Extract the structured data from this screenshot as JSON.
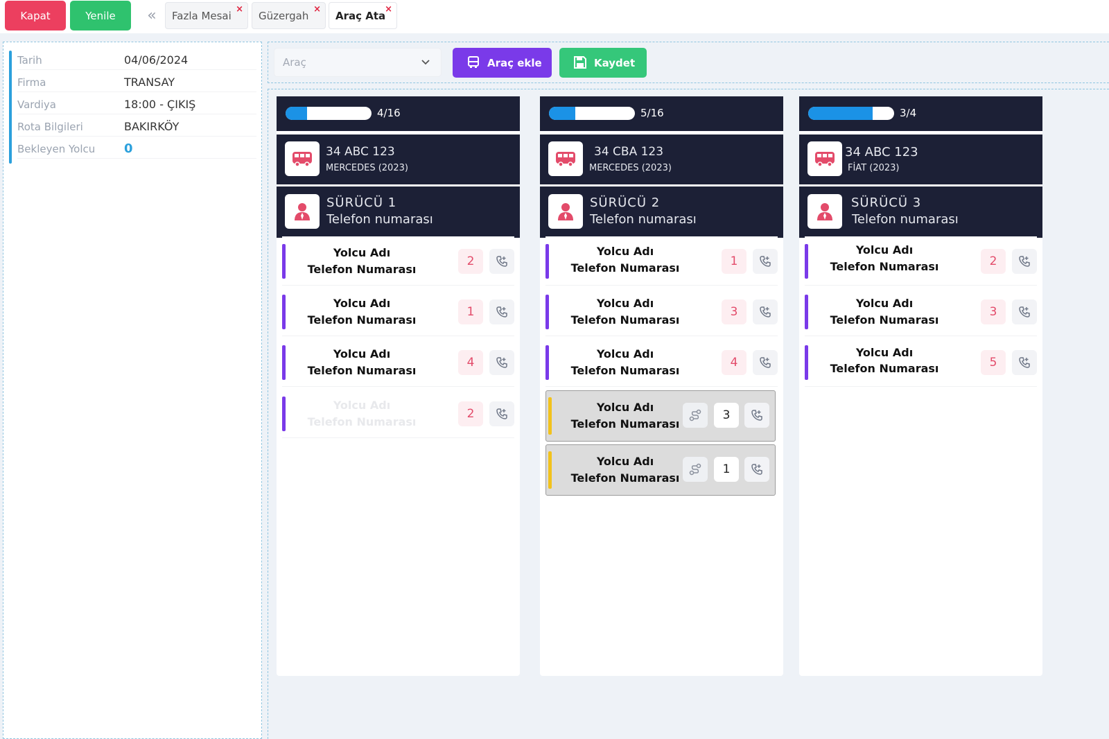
{
  "top": {
    "close_label": "Kapat",
    "refresh_label": "Yenile",
    "collapse_glyph": "«",
    "tabs": [
      {
        "label": "Fazla Mesai"
      },
      {
        "label": "Güzergah"
      },
      {
        "label": "Araç Ata"
      }
    ],
    "tab_close_glyph": "×"
  },
  "info": {
    "rows": [
      {
        "label": "Tarih",
        "value": "04/06/2024"
      },
      {
        "label": "Firma",
        "value": "TRANSAY"
      },
      {
        "label": "Vardiya",
        "value": "18:00 - ÇIKIŞ"
      },
      {
        "label": "Rota Bilgileri",
        "value": "BAKIRKÖY"
      },
      {
        "label": "Bekleyen Yolcu",
        "value": "0"
      }
    ]
  },
  "toolbar": {
    "vehicle_select_placeholder": "Araç",
    "add_vehicle_label": "Araç ekle",
    "save_label": "Kaydet"
  },
  "colors": {
    "accent_purple": "#7a3ae9",
    "danger": "#ec3f5f",
    "success": "#2fc26e",
    "info_blue": "#2ba0dc",
    "header_dark": "#1c2036",
    "transfer_yellow": "#f2c21c"
  },
  "columns": [
    {
      "capacity_text": "4/16",
      "capacity_fraction": 0.25,
      "vehicle": {
        "plate": "34 ABC 123",
        "model": "MERCEDES (2023)",
        "icon": "bus-icon"
      },
      "driver": {
        "name": "SÜRÜCÜ 1",
        "phone": "Telefon numarası",
        "icon": "person-icon"
      },
      "passengers": [
        {
          "name": "Yolcu Adı",
          "phone": "Telefon Numarası",
          "stop": "2"
        },
        {
          "name": "Yolcu Adı",
          "phone": "Telefon Numarası",
          "stop": "1"
        },
        {
          "name": "Yolcu Adı",
          "phone": "Telefon Numarası",
          "stop": "4"
        },
        {
          "name": "Yolcu Adı",
          "phone": "Telefon Numarası",
          "stop": "2"
        }
      ]
    },
    {
      "capacity_text": "5/16",
      "capacity_fraction": 0.31,
      "vehicle": {
        "plate": "34 CBA 123",
        "model": "MERCEDES (2023)",
        "icon": "bus-icon"
      },
      "driver": {
        "name": "SÜRÜCÜ 2",
        "phone": "Telefon numarası",
        "icon": "person-icon"
      },
      "passengers": [
        {
          "name": "Yolcu Adı",
          "phone": "Telefon Numarası",
          "stop": "1"
        },
        {
          "name": "Yolcu Adı",
          "phone": "Telefon Numarası",
          "stop": "3"
        },
        {
          "name": "Yolcu Adı",
          "phone": "Telefon Numarası",
          "stop": "4"
        }
      ],
      "transfer_passengers": [
        {
          "name": "Yolcu Adı",
          "phone": "Telefon Numarası",
          "stop": "3"
        },
        {
          "name": "Yolcu Adı",
          "phone": "Telefon Numarası",
          "stop": "1"
        }
      ]
    },
    {
      "capacity_text": "3/4",
      "capacity_fraction": 0.75,
      "vehicle": {
        "plate": "34 ABC 123",
        "model": "FİAT (2023)",
        "icon": "bus-icon"
      },
      "driver": {
        "name": "SÜRÜCÜ 3",
        "phone": "Telefon numarası",
        "icon": "person-icon"
      },
      "passengers": [
        {
          "name": "Yolcu Adı",
          "phone": "Telefon Numarası",
          "stop": "2"
        },
        {
          "name": "Yolcu Adı",
          "phone": "Telefon Numarası",
          "stop": "3"
        },
        {
          "name": "Yolcu Adı",
          "phone": "Telefon Numarası",
          "stop": "5"
        }
      ]
    }
  ]
}
